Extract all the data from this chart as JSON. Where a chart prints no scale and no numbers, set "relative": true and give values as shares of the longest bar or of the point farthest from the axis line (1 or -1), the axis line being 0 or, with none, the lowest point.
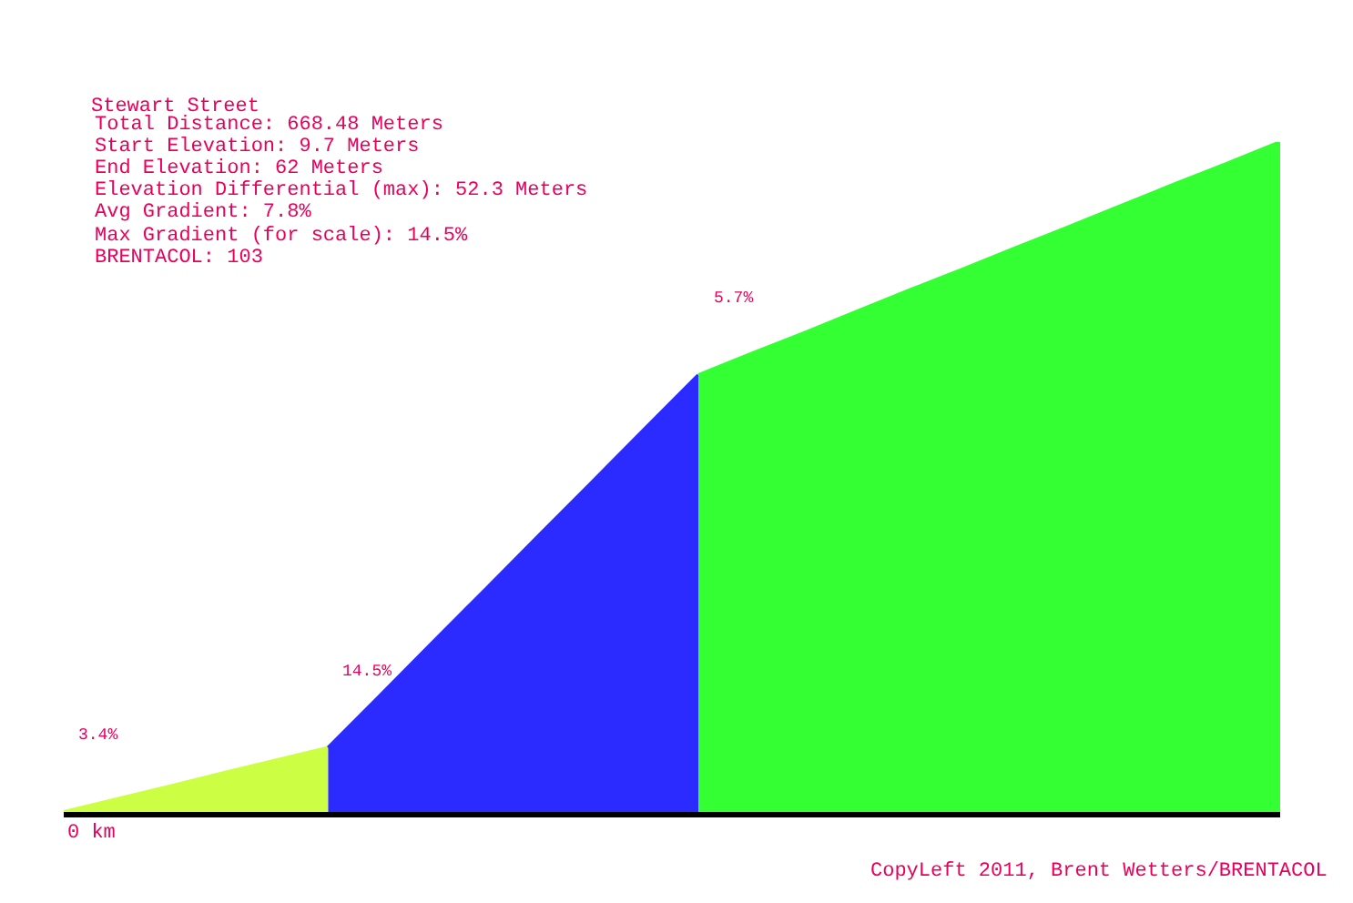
{
  "chart_data": {
    "type": "area",
    "title": "Stewart Street",
    "relative": true,
    "annotations": [
      "Total Distance: 668.48 Meters",
      "Start Elevation: 9.7 Meters",
      "End Elevation: 62 Meters",
      "Elevation Differential (max): 52.3 Meters",
      "Avg Gradient: 7.8%",
      "Max Gradient (for scale): 14.5%",
      "BRENTACOL: 103",
      "3.4%",
      "14.5%",
      "5.7%",
      "0 km",
      "CopyLeft 2011, Brent Wetters/BRENTACOL"
    ],
    "categories": [
      null,
      null,
      null,
      null,
      null,
      null,
      null,
      null,
      null,
      null,
      null,
      null,
      null,
      null,
      null,
      null,
      null,
      null,
      null,
      null,
      null,
      null,
      null,
      null
    ],
    "series": [
      {
        "color": "#ccff44",
        "values": [
          0,
          0.019,
          0.038,
          0.058,
          0.077,
          0.096,
          null,
          null,
          null,
          null,
          null,
          null,
          null,
          null,
          null,
          null,
          null,
          null,
          null,
          null,
          null,
          null,
          null,
          null
        ]
      },
      {
        "color": "#2b2bff",
        "values": [
          null,
          null,
          null,
          null,
          null,
          0.096,
          0.175,
          0.255,
          0.334,
          0.414,
          0.493,
          0.573,
          0.652,
          null,
          null,
          null,
          null,
          null,
          null,
          null,
          null,
          null,
          null,
          null
        ]
      },
      {
        "color": "#33ff33",
        "values": [
          null,
          null,
          null,
          null,
          null,
          null,
          null,
          null,
          null,
          null,
          null,
          null,
          0.652,
          0.684,
          0.715,
          0.747,
          0.779,
          0.81,
          0.842,
          0.873,
          0.905,
          0.937,
          0.968,
          1
        ]
      }
    ]
  }
}
